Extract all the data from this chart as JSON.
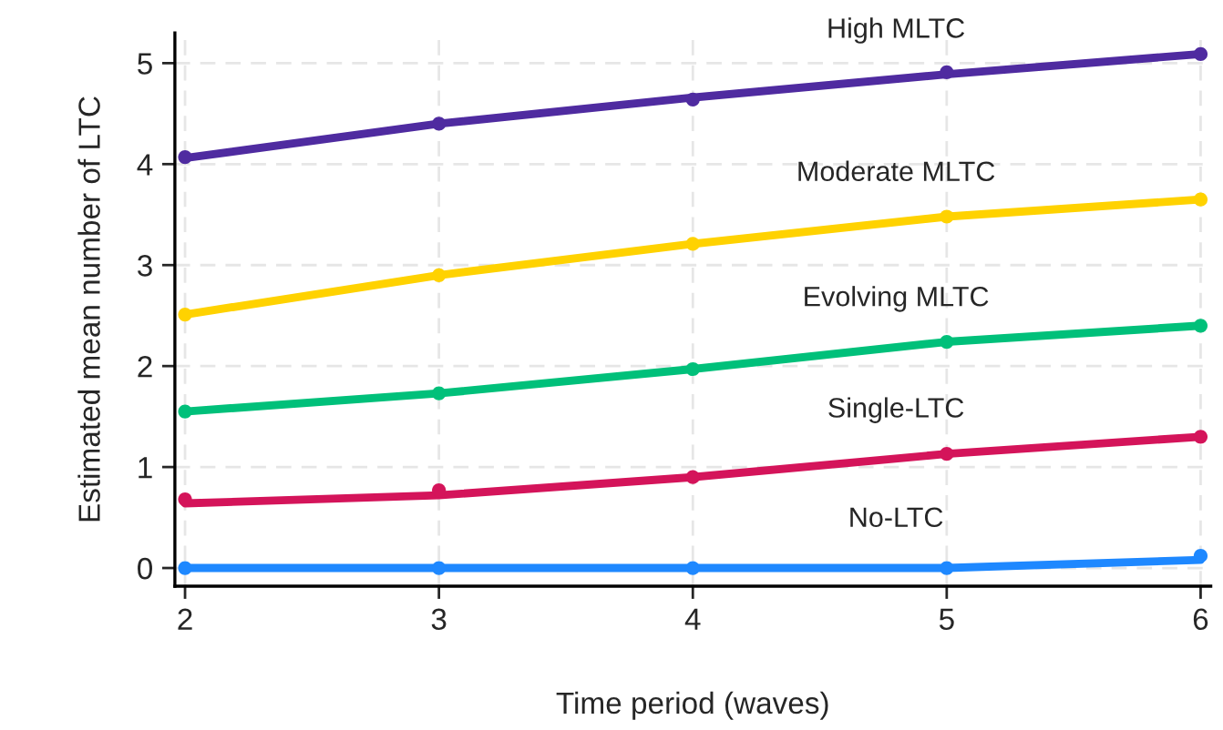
{
  "chart_data": {
    "type": "line",
    "xlabel": "Time period (waves)",
    "ylabel": "Estimated mean number of LTC",
    "x": [
      2,
      3,
      4,
      5,
      6
    ],
    "series": [
      {
        "name": "High MLTC",
        "color": "#4f2ba0",
        "values": [
          4.06,
          4.4,
          4.66,
          4.89,
          5.09
        ]
      },
      {
        "type": "scatter",
        "marker": "circle",
        "color": "#4f2ba0",
        "values": [
          4.07,
          4.4,
          4.64,
          4.91,
          5.09
        ]
      },
      {
        "name": "Moderate MLTC",
        "color": "#ffd200",
        "values": [
          2.51,
          2.9,
          3.21,
          3.48,
          3.65
        ]
      },
      {
        "type": "scatter",
        "marker": "circle",
        "color": "#ffd200",
        "values": [
          2.51,
          2.9,
          3.21,
          3.48,
          3.65
        ]
      },
      {
        "name": "Evolving MLTC",
        "color": "#00c07a",
        "values": [
          1.55,
          1.73,
          1.97,
          2.24,
          2.4
        ]
      },
      {
        "type": "scatter",
        "marker": "circle",
        "color": "#00c07a",
        "values": [
          1.55,
          1.73,
          1.97,
          2.24,
          2.4
        ]
      },
      {
        "name": "Single-LTC",
        "color": "#d4145a",
        "values": [
          0.64,
          0.72,
          0.9,
          1.13,
          1.3
        ]
      },
      {
        "type": "scatter",
        "marker": "circle",
        "color": "#d4145a",
        "values": [
          0.68,
          0.77,
          0.9,
          1.13,
          1.3
        ]
      },
      {
        "name": "No-LTC",
        "color": "#1e88ff",
        "values": [
          0.0,
          0.0,
          0.0,
          0.0,
          0.08
        ]
      },
      {
        "type": "scatter",
        "marker": "circle",
        "color": "#1e88ff",
        "values": [
          0.0,
          0.0,
          0.0,
          0.0,
          0.12
        ]
      }
    ],
    "xlim": [
      1.96,
      6.04
    ],
    "xticks": [
      2,
      3,
      4,
      5,
      6
    ],
    "ylim": [
      -0.18,
      5.3
    ],
    "yticks": [
      0,
      1,
      2,
      3,
      4,
      5
    ],
    "grid": true,
    "legend": false,
    "line_style": "solid"
  }
}
